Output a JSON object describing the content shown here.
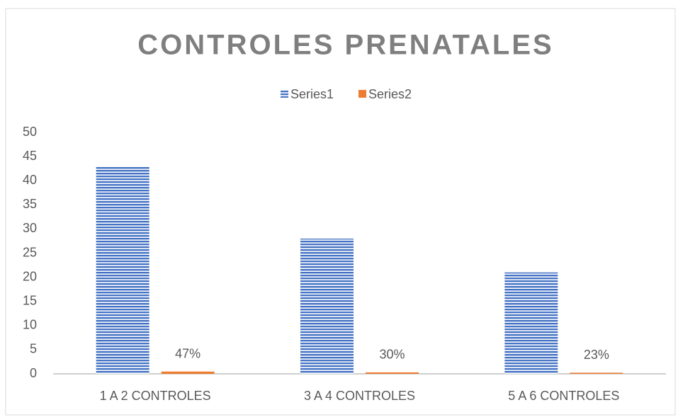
{
  "chart_data": {
    "type": "bar",
    "title": "CONTROLES PRENATALES",
    "categories": [
      "1 A 2 CONTROLES",
      "3 A 4 CONTROLES",
      "5 A 6 CONTROLES"
    ],
    "series": [
      {
        "name": "Series1",
        "color": "#4472c4",
        "values": [
          43,
          28,
          21
        ]
      },
      {
        "name": "Series2",
        "color": "#ed7d31",
        "values": [
          0.47,
          0.3,
          0.23
        ],
        "value_labels": [
          "47%",
          "30%",
          "23%"
        ]
      }
    ],
    "ylim": [
      0,
      50
    ],
    "yticks": [
      0,
      5,
      10,
      15,
      20,
      25,
      30,
      35,
      40,
      45,
      50
    ],
    "legend": "top"
  }
}
